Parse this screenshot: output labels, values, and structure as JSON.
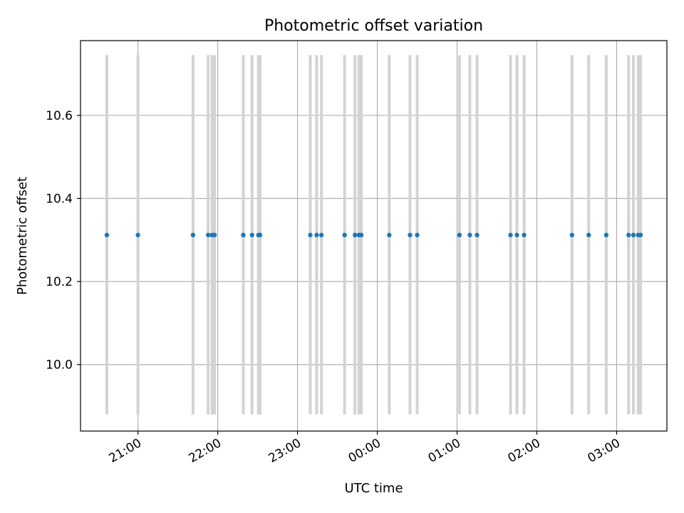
{
  "chart_data": {
    "type": "scatter",
    "title": "Photometric offset variation",
    "xlabel": "UTC time",
    "ylabel": "Photometric offset",
    "xlim": [
      20.28,
      27.63
    ],
    "ylim": [
      9.84,
      10.78
    ],
    "grid": true,
    "x_tick_labels": [
      "21:00",
      "22:00",
      "23:00",
      "00:00",
      "01:00",
      "02:00",
      "03:00"
    ],
    "x_tick_values": [
      21,
      22,
      23,
      24,
      25,
      26,
      27
    ],
    "y_tick_labels": [
      "10.0",
      "10.2",
      "10.4",
      "10.6"
    ],
    "y_tick_values": [
      10.0,
      10.2,
      10.4,
      10.6
    ],
    "series": [
      {
        "x": [
          20.61,
          21.0,
          21.69,
          21.88,
          21.93,
          21.96,
          22.32,
          22.43,
          22.51,
          22.53,
          23.16,
          23.24,
          23.3,
          23.59,
          23.72,
          23.77,
          23.8,
          24.15,
          24.41,
          24.5,
          25.03,
          25.16,
          25.25,
          25.67,
          25.75,
          25.84,
          26.44,
          26.65,
          26.87,
          27.15,
          27.21,
          27.27,
          27.3
        ],
        "y": [
          10.312,
          10.312,
          10.312,
          10.312,
          10.312,
          10.312,
          10.312,
          10.312,
          10.312,
          10.312,
          10.312,
          10.312,
          10.312,
          10.312,
          10.312,
          10.312,
          10.312,
          10.312,
          10.312,
          10.312,
          10.312,
          10.312,
          10.312,
          10.312,
          10.312,
          10.312,
          10.312,
          10.312,
          10.312,
          10.312,
          10.312,
          10.312,
          10.312
        ]
      }
    ],
    "vlines": {
      "x": [
        20.61,
        21.0,
        21.69,
        21.88,
        21.93,
        21.96,
        22.32,
        22.43,
        22.51,
        22.53,
        23.16,
        23.24,
        23.3,
        23.59,
        23.72,
        23.77,
        23.8,
        24.15,
        24.41,
        24.5,
        25.03,
        25.16,
        25.25,
        25.67,
        25.75,
        25.84,
        26.44,
        26.65,
        26.87,
        27.15,
        27.21,
        27.27,
        27.3
      ],
      "ymin": 9.88,
      "ymax": 10.745
    },
    "colors": {
      "points": "#1f77b4",
      "vlines": "#d3d3d3",
      "grid": "#b0b0b0"
    }
  }
}
